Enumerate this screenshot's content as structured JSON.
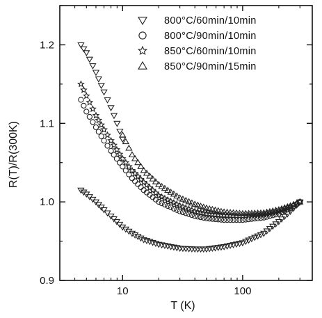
{
  "chart_data": {
    "type": "scatter",
    "title": "",
    "xlabel": "T (K)",
    "ylabel": "R(T)/R(300K)",
    "xscale": "log",
    "xlim": [
      3,
      380
    ],
    "ylim": [
      0.9,
      1.25
    ],
    "x_ticks": [
      10,
      100
    ],
    "x_tick_labels": [
      "10",
      "100"
    ],
    "y_ticks": [
      0.9,
      1.0,
      1.1,
      1.2
    ],
    "y_tick_labels": [
      "0.9",
      "1.0",
      "1.1",
      "1.2"
    ],
    "grid": false,
    "legend_position": "top-right",
    "series": [
      {
        "name": "800°C/60min/10min",
        "marker": "triangle-down",
        "x": [
          4.5,
          5,
          6,
          7,
          8,
          9,
          10
        ],
        "y": [
          1.2,
          1.19,
          1.165,
          1.14,
          1.12,
          1.1,
          1.08
        ]
      },
      {
        "name": "800°C/90min/10min",
        "marker": "circle",
        "x": [
          4.5,
          5,
          6,
          7,
          8,
          10,
          12,
          15,
          20,
          30,
          40,
          50,
          70,
          100,
          150,
          200,
          250,
          300
        ],
        "y": [
          1.13,
          1.115,
          1.095,
          1.078,
          1.065,
          1.045,
          1.03,
          1.015,
          1.0,
          0.988,
          0.982,
          0.979,
          0.977,
          0.977,
          0.98,
          0.985,
          0.992,
          1.0
        ]
      },
      {
        "name": "850°C/60min/10min",
        "marker": "star",
        "x": [
          4.5,
          5,
          6,
          7,
          8,
          10,
          12,
          15,
          20,
          30,
          40,
          50,
          70,
          100,
          150,
          200,
          250,
          300
        ],
        "y": [
          1.15,
          1.135,
          1.11,
          1.092,
          1.078,
          1.055,
          1.04,
          1.025,
          1.008,
          0.995,
          0.988,
          0.985,
          0.983,
          0.982,
          0.984,
          0.988,
          0.994,
          1.0
        ]
      },
      {
        "name": "850°C/90min/15min",
        "marker": "triangle-up",
        "x": [
          10,
          12,
          15,
          20,
          30,
          40,
          50,
          70,
          100,
          150,
          200,
          250,
          300
        ],
        "y": [
          1.085,
          1.06,
          1.04,
          1.022,
          1.005,
          0.997,
          0.992,
          0.987,
          0.985,
          0.986,
          0.99,
          0.995,
          1.0
        ]
      },
      {
        "name": "",
        "marker": "triangle-down",
        "x": [
          4.5,
          5,
          6,
          7,
          8,
          10,
          12,
          15,
          20,
          30,
          40,
          50,
          70,
          100,
          150,
          200,
          250,
          300
        ],
        "y": [
          1.015,
          1.01,
          1.0,
          0.99,
          0.982,
          0.968,
          0.96,
          0.952,
          0.946,
          0.941,
          0.94,
          0.94,
          0.943,
          0.948,
          0.96,
          0.975,
          0.988,
          1.0
        ]
      }
    ]
  }
}
